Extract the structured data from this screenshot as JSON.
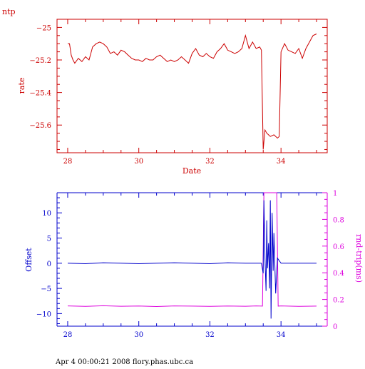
{
  "page_label": "ntp",
  "footer_text": "Apr  4 00:00:21 2008 flory.phas.ubc.ca",
  "chart_data": [
    {
      "type": "line",
      "title": "",
      "xlabel": "Date",
      "ylabel": "rate",
      "xlim": [
        27.7,
        35.3
      ],
      "ylim": [
        -25.77,
        -24.95
      ],
      "x_ticks": [
        28,
        30,
        32,
        34
      ],
      "y_ticks": [
        -25,
        -25.2,
        -25.4,
        -25.6
      ],
      "color": "#cc0000",
      "series": [
        {
          "x": [
            28.0,
            28.05,
            28.1,
            28.15,
            28.2,
            28.3,
            28.4,
            28.5,
            28.6,
            28.7,
            28.8,
            28.9,
            29.0,
            29.1,
            29.2,
            29.3,
            29.4,
            29.5,
            29.6,
            29.7,
            29.8,
            29.9,
            30.0,
            30.1,
            30.2,
            30.3,
            30.4,
            30.5,
            30.6,
            30.7,
            30.8,
            30.9,
            31.0,
            31.1,
            31.2,
            31.3,
            31.4,
            31.5,
            31.6,
            31.7,
            31.8,
            31.9,
            32.0,
            32.1,
            32.2,
            32.3,
            32.4,
            32.5,
            32.6,
            32.7,
            32.8,
            32.9,
            33.0,
            33.1,
            33.2,
            33.3,
            33.4,
            33.45,
            33.5,
            33.55,
            33.6,
            33.65,
            33.7,
            33.8,
            33.9,
            33.95,
            34.0,
            34.1,
            34.2,
            34.3,
            34.4,
            34.5,
            34.6,
            34.7,
            34.8,
            34.9,
            35.0
          ],
          "y": [
            -25.1,
            -25.1,
            -25.17,
            -25.2,
            -25.22,
            -25.19,
            -25.21,
            -25.18,
            -25.2,
            -25.12,
            -25.1,
            -25.09,
            -25.1,
            -25.12,
            -25.16,
            -25.15,
            -25.17,
            -25.14,
            -25.15,
            -25.17,
            -25.19,
            -25.2,
            -25.2,
            -25.21,
            -25.19,
            -25.2,
            -25.2,
            -25.18,
            -25.17,
            -25.19,
            -25.21,
            -25.2,
            -25.21,
            -25.2,
            -25.18,
            -25.2,
            -25.22,
            -25.16,
            -25.13,
            -25.17,
            -25.18,
            -25.16,
            -25.18,
            -25.19,
            -25.15,
            -25.13,
            -25.1,
            -25.14,
            -25.15,
            -25.16,
            -25.15,
            -25.13,
            -25.05,
            -25.13,
            -25.09,
            -25.13,
            -25.12,
            -25.14,
            -25.75,
            -25.63,
            -25.65,
            -25.66,
            -25.67,
            -25.66,
            -25.68,
            -25.67,
            -25.15,
            -25.1,
            -25.14,
            -25.15,
            -25.16,
            -25.13,
            -25.19,
            -25.13,
            -25.09,
            -25.05,
            -25.04
          ]
        }
      ]
    },
    {
      "type": "line",
      "title": "",
      "xlabel": "",
      "ylabel": "Offset",
      "y2label": "rnd-trip(ms)",
      "xlim": [
        27.7,
        35.3
      ],
      "ylim": [
        -12.5,
        14
      ],
      "y2lim": [
        0,
        1
      ],
      "x_ticks": [
        28,
        30,
        32,
        34
      ],
      "y_ticks": [
        10,
        5,
        0,
        -5,
        -10
      ],
      "y2_ticks": [
        1,
        0.8,
        0.6,
        0.4,
        0.2,
        0
      ],
      "offset_color": "#0000cc",
      "rndtrip_color": "#dd00dd",
      "series": [
        {
          "axis": "left",
          "x": [
            28.0,
            28.5,
            29.0,
            29.5,
            30.0,
            30.5,
            31.0,
            31.5,
            32.0,
            32.5,
            33.0,
            33.3,
            33.45,
            33.5,
            33.52,
            33.55,
            33.58,
            33.6,
            33.62,
            33.65,
            33.68,
            33.7,
            33.72,
            33.75,
            33.78,
            33.8,
            33.85,
            33.9,
            34.0,
            34.2,
            34.5,
            35.0
          ],
          "y": [
            0.0,
            -0.1,
            0.1,
            0.0,
            -0.1,
            0.0,
            0.1,
            0.0,
            -0.1,
            0.1,
            0.0,
            0.0,
            0.0,
            -2.0,
            12.5,
            1.0,
            -5.5,
            8.5,
            -1.0,
            4.0,
            -5.0,
            12.5,
            -11.0,
            10.0,
            -1.5,
            6.0,
            -6.0,
            1.0,
            0.0,
            0.0,
            0.0,
            0.0
          ]
        },
        {
          "axis": "right",
          "x": [
            28.0,
            28.5,
            29.0,
            29.5,
            30.0,
            30.5,
            31.0,
            31.5,
            32.0,
            32.5,
            33.0,
            33.3,
            33.48,
            33.52,
            33.6,
            33.7,
            33.8,
            33.88,
            33.92,
            34.0,
            34.5,
            35.0
          ],
          "y": [
            0.152,
            0.148,
            0.153,
            0.149,
            0.151,
            0.147,
            0.152,
            0.15,
            0.148,
            0.151,
            0.149,
            0.152,
            0.15,
            1.0,
            1.0,
            1.0,
            1.0,
            1.0,
            0.15,
            0.152,
            0.148,
            0.15
          ]
        }
      ]
    }
  ]
}
